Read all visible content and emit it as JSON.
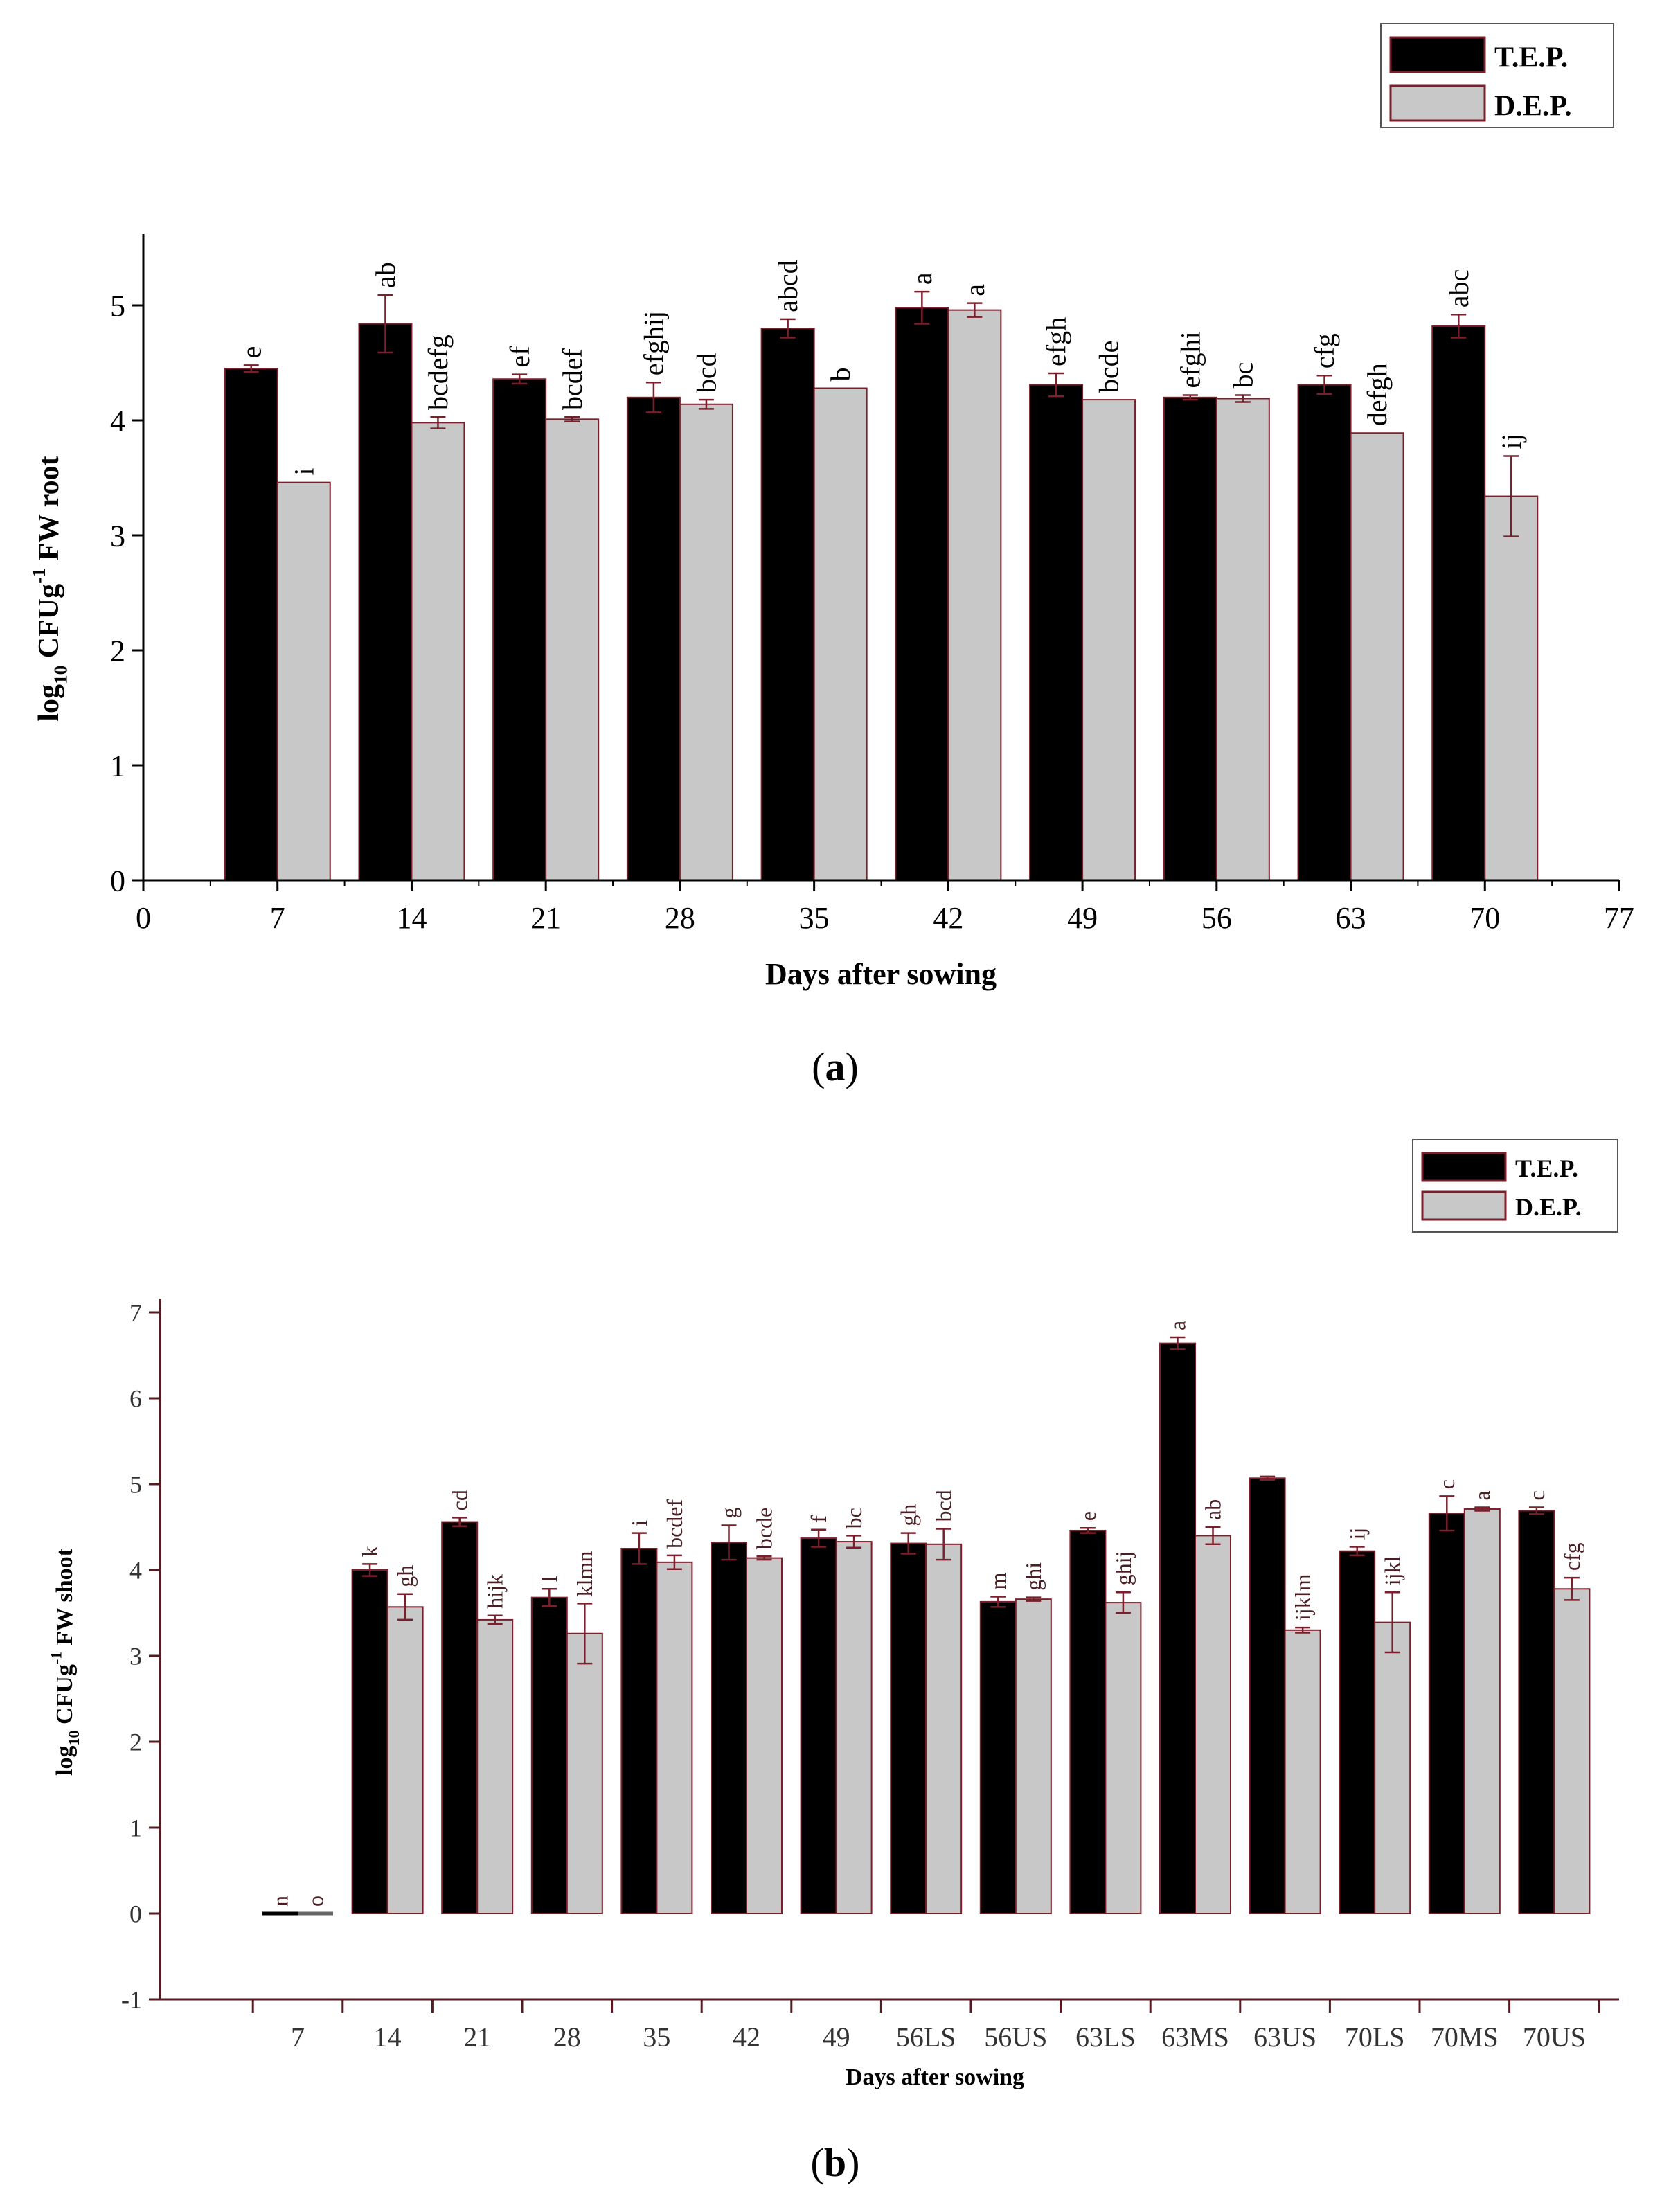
{
  "colors": {
    "tep_fill": "#000000",
    "dep_fill": "#c8c8c8",
    "bar_edge": "#7a1f2b",
    "error_bar": "#7a1f2b",
    "axis": "#000000",
    "axis_b": "#5a1a22"
  },
  "chart_data": [
    {
      "id": "a",
      "type": "bar",
      "panel_label": "(a)",
      "title": "",
      "xlabel": "Days after sowing",
      "ylabel_parts": {
        "prefix": "log",
        "sub": "10",
        "mid": " CFUg",
        "sup": "-1",
        "suffix": " FW root"
      },
      "xlim": [
        0,
        77
      ],
      "ylim": [
        0,
        5.5
      ],
      "xticks": [
        "0",
        "7",
        "14",
        "21",
        "28",
        "35",
        "42",
        "49",
        "56",
        "63",
        "70",
        "77"
      ],
      "yticks": [
        "0",
        "1",
        "2",
        "3",
        "4",
        "5"
      ],
      "categories": [
        "7",
        "14",
        "21",
        "28",
        "35",
        "42",
        "49",
        "56",
        "63",
        "70"
      ],
      "legend": {
        "placement": "top-right",
        "entries": [
          "T.E.P.",
          "D.E.P."
        ]
      },
      "series": [
        {
          "name": "T.E.P.",
          "values": [
            4.45,
            4.84,
            4.36,
            4.2,
            4.8,
            4.98,
            4.31,
            4.2,
            4.31,
            4.82
          ],
          "errors": [
            0.03,
            0.25,
            0.04,
            0.13,
            0.08,
            0.14,
            0.1,
            0.02,
            0.08,
            0.1
          ],
          "letters": [
            "e",
            "ab",
            "ef",
            "efghij",
            "abcd",
            "a",
            "efgh",
            "efghi",
            "cfg",
            "abc"
          ]
        },
        {
          "name": "D.E.P.",
          "values": [
            3.46,
            3.98,
            4.01,
            4.14,
            4.28,
            4.96,
            4.18,
            4.19,
            3.89,
            3.34
          ],
          "errors": [
            0.0,
            0.05,
            0.02,
            0.04,
            0.0,
            0.06,
            0.0,
            0.03,
            0.0,
            0.35
          ],
          "letters": [
            "i",
            "bcdefg",
            "bcdef",
            "bcd",
            "b",
            "a",
            "bcde",
            "bc",
            "defgh",
            "ij"
          ]
        }
      ]
    },
    {
      "id": "b",
      "type": "bar",
      "panel_label": "(b)",
      "title": "",
      "xlabel": "Days after sowing",
      "ylabel_parts": {
        "prefix": "log",
        "sub": "10",
        "mid": " CFUg",
        "sup": "-1",
        "suffix": " FW shoot"
      },
      "ylim": [
        -1,
        7
      ],
      "yticks": [
        "-1",
        "0",
        "1",
        "2",
        "3",
        "4",
        "5",
        "6",
        "7"
      ],
      "categories": [
        "7",
        "14",
        "21",
        "28",
        "35",
        "42",
        "49",
        "56LS",
        "56US",
        "63LS",
        "63MS",
        "63US",
        "70LS",
        "70MS",
        "70US"
      ],
      "legend": {
        "placement": "top-right",
        "entries": [
          "T.E.P.",
          "D.E.P."
        ]
      },
      "series": [
        {
          "name": "T.E.P.",
          "values": [
            0.0,
            4.0,
            4.56,
            3.68,
            4.25,
            4.32,
            4.37,
            4.31,
            3.63,
            4.46,
            6.64,
            5.07,
            4.22,
            4.66,
            4.69
          ],
          "errors": [
            0.0,
            0.07,
            0.05,
            0.1,
            0.18,
            0.2,
            0.1,
            0.12,
            0.06,
            0.03,
            0.07,
            0.02,
            0.05,
            0.2,
            0.04
          ],
          "letters": [
            "n",
            "k",
            "cd",
            "l",
            "i",
            "g",
            "f",
            "gh",
            "m",
            "e",
            "a",
            "",
            "ij",
            "c",
            "c"
          ]
        },
        {
          "name": "D.E.P.",
          "values": [
            0.0,
            3.57,
            3.42,
            3.26,
            4.09,
            4.14,
            4.33,
            4.3,
            3.66,
            3.62,
            4.4,
            3.3,
            3.39,
            4.71,
            3.78
          ],
          "errors": [
            0.0,
            0.15,
            0.05,
            0.35,
            0.08,
            0.02,
            0.07,
            0.18,
            0.02,
            0.12,
            0.1,
            0.03,
            0.35,
            0.02,
            0.13
          ],
          "letters": [
            "o",
            "gh",
            "hijk",
            "klmn",
            "bcdef",
            "bcde",
            "bc",
            "bcd",
            "ghi",
            "ghij",
            "ab",
            "ijklm",
            "ijkl",
            "a",
            "cfg"
          ]
        }
      ]
    }
  ]
}
